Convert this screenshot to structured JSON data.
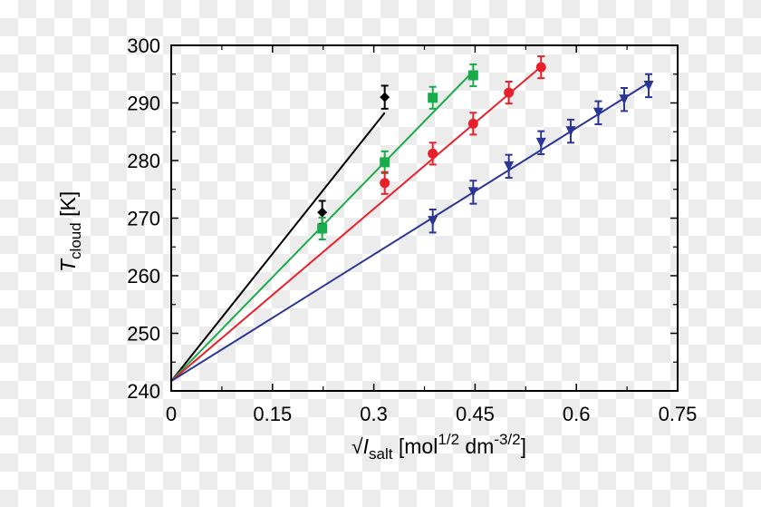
{
  "chart_data": {
    "type": "line",
    "title": "",
    "xlabel": {
      "root": "√",
      "main": "I",
      "sub": "salt",
      "unit_a": " [mol",
      "sup_a": "1/2",
      "unit_b": " dm",
      "sup_b": "-3/2",
      "unit_c": "]"
    },
    "ylabel": {
      "main": "T",
      "sub": "cloud",
      "unit": " [K]"
    },
    "xlim": [
      0,
      0.75
    ],
    "ylim": [
      240,
      300
    ],
    "xticks": [
      "0",
      "0.15",
      "0.3",
      "0.45",
      "0.6",
      "0.75"
    ],
    "yticks": [
      "240",
      "250",
      "260",
      "270",
      "280",
      "290",
      "300"
    ],
    "grid": false,
    "fit_intercept": 241.7,
    "series": [
      {
        "color": "#000000",
        "marker": "diamond",
        "x": [
          0.2236,
          0.3162
        ],
        "y": [
          271.0,
          291.0
        ],
        "err": [
          2.0,
          2.0
        ],
        "fit_end": [
          0.3162,
          288.3
        ]
      },
      {
        "color": "#1aab4a",
        "marker": "square",
        "x": [
          0.2236,
          0.3162,
          0.3873,
          0.4472
        ],
        "y": [
          268.2,
          279.7,
          290.9,
          294.8
        ],
        "err": [
          1.9,
          1.9,
          1.9,
          1.9
        ],
        "fit_end": [
          0.4472,
          295.5
        ]
      },
      {
        "color": "#e8202a",
        "marker": "circle",
        "x": [
          0.3162,
          0.3873,
          0.4472,
          0.5,
          0.5477
        ],
        "y": [
          276.1,
          281.2,
          286.4,
          291.8,
          296.2
        ],
        "err": [
          1.9,
          1.9,
          1.9,
          1.9,
          1.9
        ],
        "fit_end": [
          0.5477,
          296.3
        ]
      },
      {
        "color": "#2b3593",
        "marker": "triangle-down",
        "x": [
          0.3873,
          0.4472,
          0.5,
          0.5477,
          0.5916,
          0.6325,
          0.6708,
          0.7071
        ],
        "y": [
          269.5,
          274.5,
          279.0,
          283.1,
          285.1,
          288.3,
          290.6,
          293.0
        ],
        "err": [
          2.0,
          2.0,
          2.0,
          2.0,
          2.0,
          2.0,
          2.0,
          2.0
        ],
        "fit_end": [
          0.7071,
          293.5
        ]
      }
    ]
  }
}
